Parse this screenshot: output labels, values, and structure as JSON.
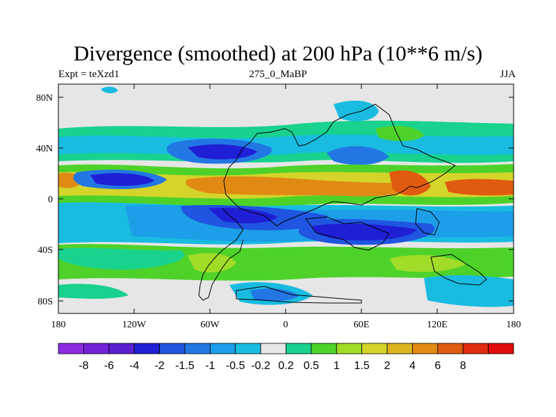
{
  "title": "Divergence (smoothed) at 200 hPa (10**6 m/s)",
  "left_label": "Expt = teXzd1",
  "center_label": "275_0_MaBP",
  "right_label": "JJA",
  "x_ticks": [
    "180",
    "120W",
    "60W",
    "0",
    "60E",
    "120E",
    "180"
  ],
  "y_ticks": [
    "80N",
    "40N",
    "0",
    "40S",
    "80S"
  ],
  "colorbar": {
    "colors": [
      "#8a2be2",
      "#7422d6",
      "#5a1fd0",
      "#1f1fd6",
      "#1f55e0",
      "#2277e4",
      "#1c9ee8",
      "#19bce0",
      "#e6e6e6",
      "#18d28e",
      "#4ed22a",
      "#a0dc28",
      "#d4d42a",
      "#dcb41e",
      "#e08a14",
      "#e05a10",
      "#e02c10",
      "#e00c0c"
    ],
    "labels": [
      "-8",
      "-6",
      "-4",
      "-2",
      "-1.5",
      "-1",
      "-0.5",
      "-0.2",
      "0.2",
      "0.5",
      "1",
      "1.5",
      "2",
      "4",
      "6",
      "8"
    ]
  },
  "chart_data": {
    "type": "contour-map",
    "title": "Divergence (smoothed) at 200 hPa (10**6 m/s)",
    "experiment": "teXzd1",
    "period": "275_0_MaBP",
    "season": "JJA",
    "xlim": [
      -180,
      180
    ],
    "ylim": [
      -90,
      90
    ],
    "levels": [
      -8,
      -6,
      -4,
      -2,
      -1.5,
      -1,
      -0.5,
      -0.2,
      0.2,
      0.5,
      1,
      1.5,
      2,
      4,
      6,
      8
    ],
    "units": "10**6 m/s"
  }
}
